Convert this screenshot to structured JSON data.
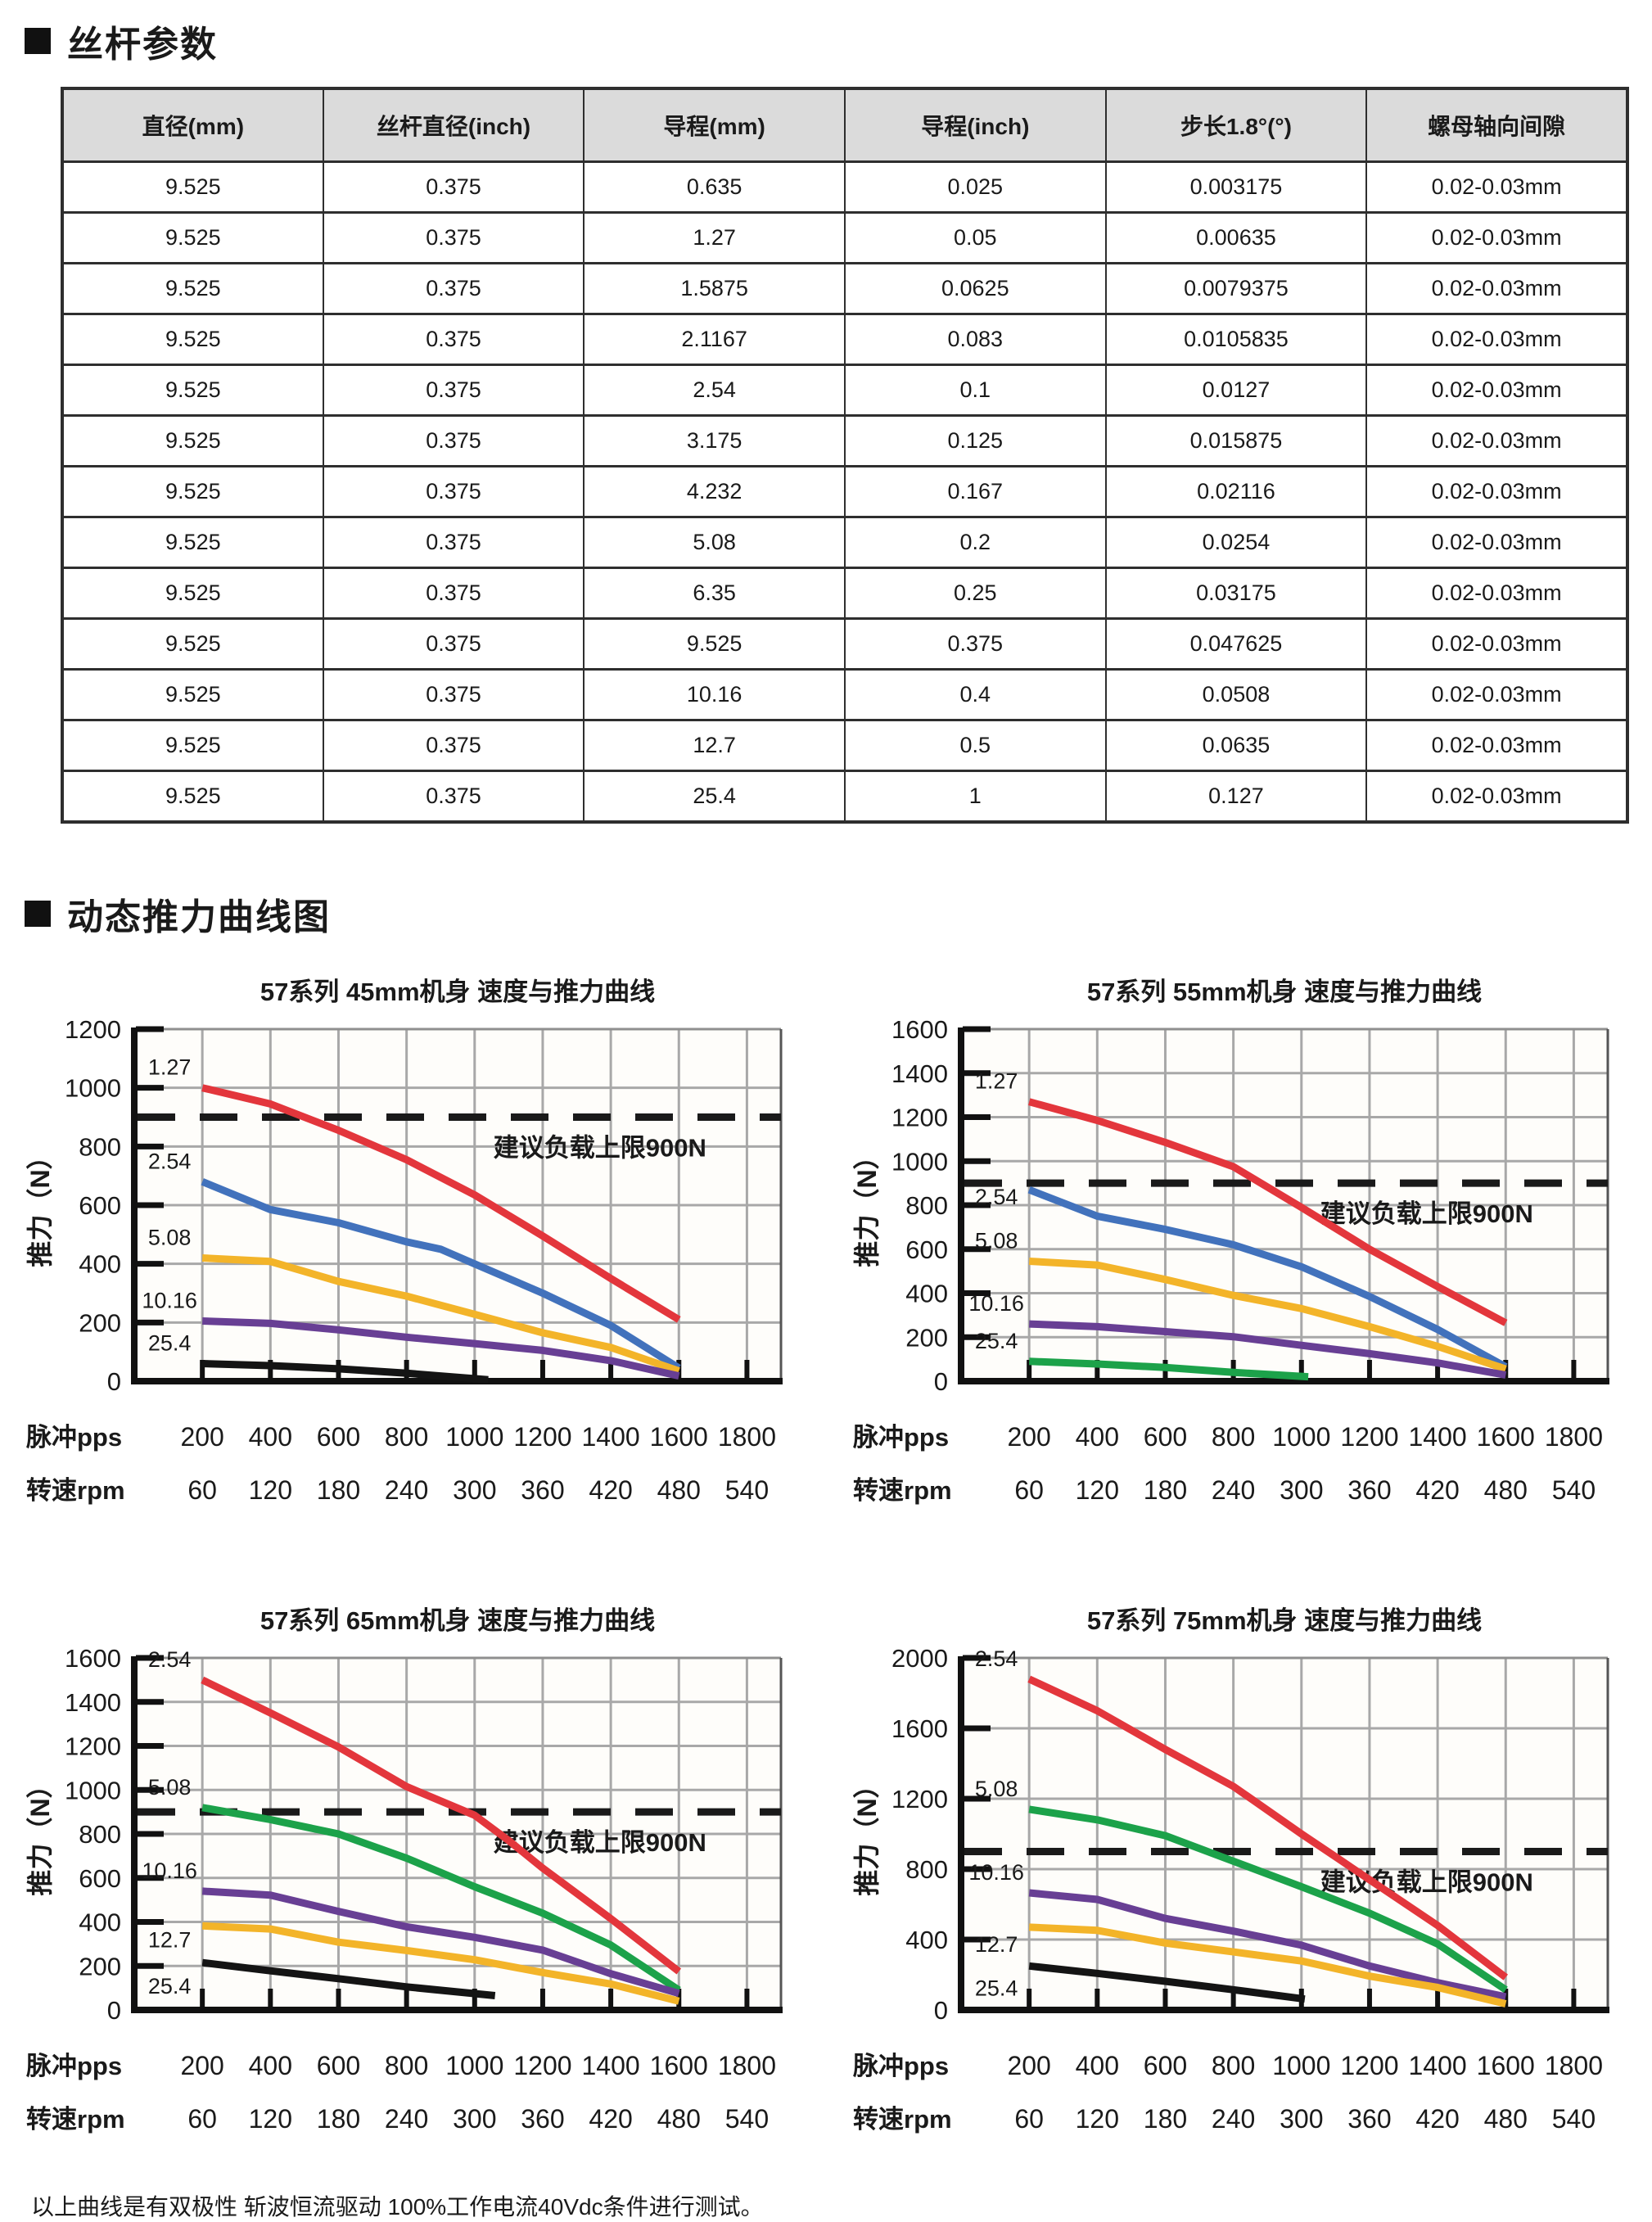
{
  "page": {
    "section1_title": "丝杆参数",
    "section2_title": "动态推力曲线图",
    "footer_note": "以上曲线是有双极性 斩波恒流驱动 100%工作电流40Vdc条件进行测试。"
  },
  "table": {
    "headers": [
      "直径(mm)",
      "丝杆直径(inch)",
      "导程(mm)",
      "导程(inch)",
      "步长1.8°(°)",
      "螺母轴向间隙"
    ],
    "rows": [
      [
        "9.525",
        "0.375",
        "0.635",
        "0.025",
        "0.003175",
        "0.02-0.03mm"
      ],
      [
        "9.525",
        "0.375",
        "1.27",
        "0.05",
        "0.00635",
        "0.02-0.03mm"
      ],
      [
        "9.525",
        "0.375",
        "1.5875",
        "0.0625",
        "0.0079375",
        "0.02-0.03mm"
      ],
      [
        "9.525",
        "0.375",
        "2.1167",
        "0.083",
        "0.0105835",
        "0.02-0.03mm"
      ],
      [
        "9.525",
        "0.375",
        "2.54",
        "0.1",
        "0.0127",
        "0.02-0.03mm"
      ],
      [
        "9.525",
        "0.375",
        "3.175",
        "0.125",
        "0.015875",
        "0.02-0.03mm"
      ],
      [
        "9.525",
        "0.375",
        "4.232",
        "0.167",
        "0.02116",
        "0.02-0.03mm"
      ],
      [
        "9.525",
        "0.375",
        "5.08",
        "0.2",
        "0.0254",
        "0.02-0.03mm"
      ],
      [
        "9.525",
        "0.375",
        "6.35",
        "0.25",
        "0.03175",
        "0.02-0.03mm"
      ],
      [
        "9.525",
        "0.375",
        "9.525",
        "0.375",
        "0.047625",
        "0.02-0.03mm"
      ],
      [
        "9.525",
        "0.375",
        "10.16",
        "0.4",
        "0.0508",
        "0.02-0.03mm"
      ],
      [
        "9.525",
        "0.375",
        "12.7",
        "0.5",
        "0.0635",
        "0.02-0.03mm"
      ],
      [
        "9.525",
        "0.375",
        "25.4",
        "1",
        "0.127",
        "0.02-0.03mm"
      ]
    ]
  },
  "colors": {
    "red": "#e3363c",
    "blue": "#4272bc",
    "yellow": "#f3b429",
    "purple": "#683f94",
    "green": "#1ca24a",
    "black": "#141414",
    "grid": "#a8a8a8",
    "limit_dash": "#1a1a1a",
    "table_header_bg": "#dbdbdb"
  },
  "chart_data": [
    {
      "type": "line",
      "title": "57系列 45mm机身 速度与推力曲线",
      "ylabel": "推力（N）",
      "ylim": [
        0,
        1200
      ],
      "y_step": 200,
      "grid": true,
      "limit_line": {
        "value": 900,
        "label": "建议负载上限900N"
      },
      "x_axis_rows": [
        {
          "label": "脉冲pps",
          "ticks": [
            200,
            400,
            600,
            800,
            1000,
            1200,
            1400,
            1600,
            1800
          ]
        },
        {
          "label": "转速rpm",
          "ticks": [
            60,
            120,
            180,
            240,
            300,
            360,
            420,
            480,
            540
          ]
        }
      ],
      "series": [
        {
          "name": "1.27",
          "color": "#e3363c",
          "points": [
            [
              200,
              1000
            ],
            [
              400,
              945
            ],
            [
              600,
              855
            ],
            [
              800,
              755
            ],
            [
              1000,
              635
            ],
            [
              1200,
              495
            ],
            [
              1400,
              350
            ],
            [
              1600,
              210
            ]
          ]
        },
        {
          "name": "2.54",
          "color": "#4272bc",
          "points": [
            [
              200,
              680
            ],
            [
              400,
              585
            ],
            [
              600,
              540
            ],
            [
              800,
              475
            ],
            [
              900,
              450
            ],
            [
              1000,
              400
            ],
            [
              1200,
              300
            ],
            [
              1400,
              190
            ],
            [
              1600,
              45
            ]
          ]
        },
        {
          "name": "5.08",
          "color": "#f3b429",
          "points": [
            [
              200,
              420
            ],
            [
              400,
              408
            ],
            [
              600,
              340
            ],
            [
              800,
              290
            ],
            [
              1000,
              228
            ],
            [
              1200,
              165
            ],
            [
              1400,
              115
            ],
            [
              1600,
              35
            ]
          ]
        },
        {
          "name": "10.16",
          "color": "#683f94",
          "points": [
            [
              200,
              205
            ],
            [
              400,
              197
            ],
            [
              600,
              175
            ],
            [
              800,
              150
            ],
            [
              1000,
              128
            ],
            [
              1200,
              105
            ],
            [
              1400,
              70
            ],
            [
              1600,
              18
            ]
          ]
        },
        {
          "name": "25.4",
          "color": "#141414",
          "points": [
            [
              200,
              60
            ],
            [
              400,
              53
            ],
            [
              600,
              42
            ],
            [
              800,
              27
            ],
            [
              1040,
              5
            ]
          ]
        }
      ]
    },
    {
      "type": "line",
      "title": "57系列 55mm机身 速度与推力曲线",
      "ylabel": "推力（N）",
      "ylim": [
        0,
        1600
      ],
      "y_step": 200,
      "grid": true,
      "limit_line": {
        "value": 900,
        "label": "建议负载上限900N"
      },
      "x_axis_rows": [
        {
          "label": "脉冲pps",
          "ticks": [
            200,
            400,
            600,
            800,
            1000,
            1200,
            1400,
            1600,
            1800
          ]
        },
        {
          "label": "转速rpm",
          "ticks": [
            60,
            120,
            180,
            240,
            300,
            360,
            420,
            480,
            540
          ]
        }
      ],
      "series": [
        {
          "name": "1.27",
          "color": "#e3363c",
          "points": [
            [
              200,
              1270
            ],
            [
              400,
              1185
            ],
            [
              600,
              1085
            ],
            [
              800,
              975
            ],
            [
              1000,
              790
            ],
            [
              1200,
              600
            ],
            [
              1400,
              430
            ],
            [
              1600,
              265
            ]
          ]
        },
        {
          "name": "2.54",
          "color": "#4272bc",
          "points": [
            [
              200,
              870
            ],
            [
              400,
              750
            ],
            [
              600,
              690
            ],
            [
              800,
              620
            ],
            [
              1000,
              520
            ],
            [
              1200,
              385
            ],
            [
              1400,
              235
            ],
            [
              1600,
              65
            ]
          ]
        },
        {
          "name": "5.08",
          "color": "#f3b429",
          "points": [
            [
              200,
              545
            ],
            [
              400,
              528
            ],
            [
              600,
              462
            ],
            [
              800,
              390
            ],
            [
              1000,
              330
            ],
            [
              1200,
              248
            ],
            [
              1400,
              158
            ],
            [
              1600,
              55
            ]
          ]
        },
        {
          "name": "10.16",
          "color": "#683f94",
          "points": [
            [
              200,
              260
            ],
            [
              400,
              248
            ],
            [
              600,
              225
            ],
            [
              800,
              202
            ],
            [
              1000,
              163
            ],
            [
              1200,
              125
            ],
            [
              1400,
              83
            ],
            [
              1600,
              28
            ]
          ]
        },
        {
          "name": "25.4",
          "color": "#1ca24a",
          "points": [
            [
              200,
              90
            ],
            [
              400,
              78
            ],
            [
              600,
              62
            ],
            [
              800,
              40
            ],
            [
              1020,
              20
            ]
          ]
        }
      ]
    },
    {
      "type": "line",
      "title": "57系列 65mm机身 速度与推力曲线",
      "ylabel": "推力（N）",
      "ylim": [
        0,
        1600
      ],
      "y_step": 200,
      "grid": true,
      "limit_line": {
        "value": 900,
        "label": "建议负载上限900N"
      },
      "x_axis_rows": [
        {
          "label": "脉冲pps",
          "ticks": [
            200,
            400,
            600,
            800,
            1000,
            1200,
            1400,
            1600,
            1800
          ]
        },
        {
          "label": "转速rpm",
          "ticks": [
            60,
            120,
            180,
            240,
            300,
            360,
            420,
            480,
            540
          ]
        }
      ],
      "series": [
        {
          "name": "2.54",
          "color": "#e3363c",
          "points": [
            [
              200,
              1500
            ],
            [
              400,
              1350
            ],
            [
              600,
              1195
            ],
            [
              800,
              1015
            ],
            [
              1000,
              885
            ],
            [
              1100,
              770
            ],
            [
              1200,
              645
            ],
            [
              1400,
              415
            ],
            [
              1600,
              175
            ]
          ]
        },
        {
          "name": "5.08",
          "color": "#1ca24a",
          "points": [
            [
              200,
              920
            ],
            [
              400,
              865
            ],
            [
              600,
              800
            ],
            [
              800,
              690
            ],
            [
              1000,
              560
            ],
            [
              1200,
              440
            ],
            [
              1400,
              295
            ],
            [
              1600,
              90
            ]
          ]
        },
        {
          "name": "10.16",
          "color": "#683f94",
          "points": [
            [
              200,
              540
            ],
            [
              400,
              522
            ],
            [
              600,
              448
            ],
            [
              800,
              378
            ],
            [
              1000,
              330
            ],
            [
              1200,
              272
            ],
            [
              1400,
              165
            ],
            [
              1600,
              75
            ]
          ]
        },
        {
          "name": "12.7",
          "color": "#f3b429",
          "points": [
            [
              200,
              382
            ],
            [
              400,
              368
            ],
            [
              600,
              308
            ],
            [
              800,
              270
            ],
            [
              1000,
              228
            ],
            [
              1200,
              170
            ],
            [
              1400,
              118
            ],
            [
              1600,
              40
            ]
          ]
        },
        {
          "name": "25.4",
          "color": "#141414",
          "points": [
            [
              200,
              215
            ],
            [
              400,
              178
            ],
            [
              600,
              142
            ],
            [
              800,
              105
            ],
            [
              1060,
              65
            ]
          ]
        }
      ]
    },
    {
      "type": "line",
      "title": "57系列 75mm机身 速度与推力曲线",
      "ylabel": "推力（N）",
      "ylim": [
        0,
        2000
      ],
      "y_step": 400,
      "grid": true,
      "limit_line": {
        "value": 900,
        "label": "建议负载上限900N"
      },
      "x_axis_rows": [
        {
          "label": "脉冲pps",
          "ticks": [
            200,
            400,
            600,
            800,
            1000,
            1200,
            1400,
            1600,
            1800
          ]
        },
        {
          "label": "转速rpm",
          "ticks": [
            60,
            120,
            180,
            240,
            300,
            360,
            420,
            480,
            540
          ]
        }
      ],
      "series": [
        {
          "name": "2.54",
          "color": "#e3363c",
          "points": [
            [
              200,
              1880
            ],
            [
              400,
              1700
            ],
            [
              600,
              1480
            ],
            [
              800,
              1270
            ],
            [
              1000,
              1000
            ],
            [
              1100,
              870
            ],
            [
              1200,
              740
            ],
            [
              1400,
              480
            ],
            [
              1600,
              185
            ]
          ]
        },
        {
          "name": "5.08",
          "color": "#1ca24a",
          "points": [
            [
              200,
              1140
            ],
            [
              400,
              1080
            ],
            [
              600,
              990
            ],
            [
              800,
              845
            ],
            [
              1000,
              700
            ],
            [
              1200,
              550
            ],
            [
              1400,
              375
            ],
            [
              1600,
              115
            ]
          ]
        },
        {
          "name": "10.16",
          "color": "#683f94",
          "points": [
            [
              200,
              665
            ],
            [
              400,
              628
            ],
            [
              600,
              520
            ],
            [
              800,
              448
            ],
            [
              1000,
              368
            ],
            [
              1200,
              250
            ],
            [
              1400,
              155
            ],
            [
              1600,
              75
            ]
          ]
        },
        {
          "name": "12.7",
          "color": "#f3b429",
          "points": [
            [
              200,
              470
            ],
            [
              400,
              452
            ],
            [
              600,
              380
            ],
            [
              800,
              330
            ],
            [
              1000,
              278
            ],
            [
              1200,
              192
            ],
            [
              1400,
              128
            ],
            [
              1600,
              35
            ]
          ]
        },
        {
          "name": "25.4",
          "color": "#141414",
          "points": [
            [
              200,
              250
            ],
            [
              400,
              208
            ],
            [
              600,
              163
            ],
            [
              800,
              115
            ],
            [
              1010,
              62
            ]
          ]
        }
      ]
    }
  ]
}
